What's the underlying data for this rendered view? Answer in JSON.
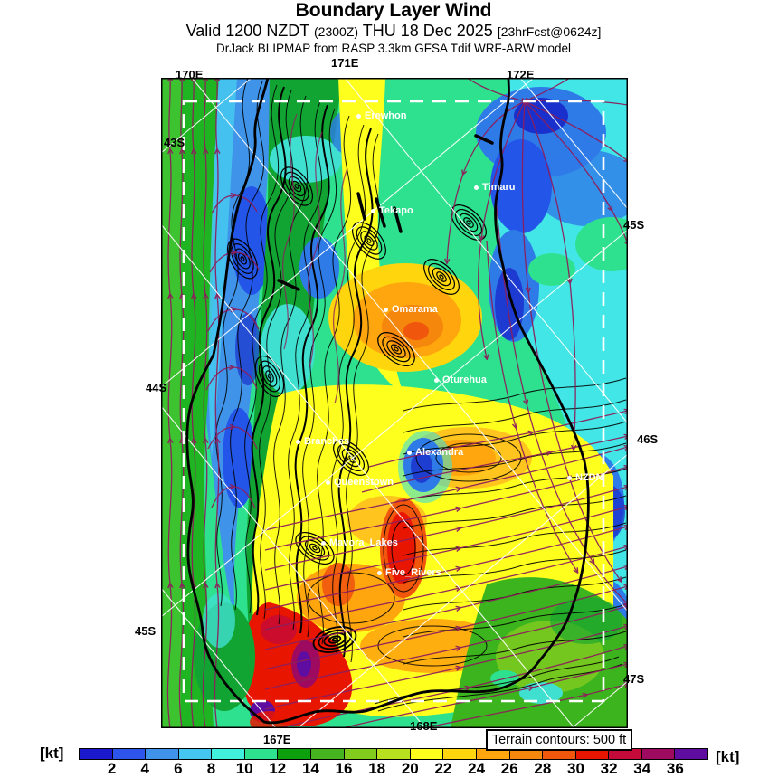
{
  "header": {
    "title": "Boundary Layer Wind",
    "valid_prefix": "Valid 1200 NZDT",
    "valid_zulu": "(2300Z)",
    "valid_date": "THU 18 Dec 2025",
    "forecast_tag": "[23hrFcst@0624z]",
    "model_line": "DrJack BLIPMAP from RASP 3.3km GFSA Tdif WRF-ARW model"
  },
  "map": {
    "geo_labels": {
      "lon_170_top": "170E",
      "lon_171_top": "171E",
      "lon_172_top": "172E",
      "lat_43_left": "43S",
      "lat_44_left": "44S",
      "lat_45_left": "45S",
      "lat_45_right": "45S",
      "lat_46_right": "46S",
      "lat_47_right": "47S",
      "lon_167_bottom": "167E",
      "lon_168_bottom": "168E"
    },
    "cities": [
      {
        "label": "Erewhon"
      },
      {
        "label": "Timaru"
      },
      {
        "label": "Tekapo"
      },
      {
        "label": "Omarama"
      },
      {
        "label": "Oturehua"
      },
      {
        "label": "Branches"
      },
      {
        "label": "Alexandra"
      },
      {
        "label": "Queenstown"
      },
      {
        "label": "NZDN"
      },
      {
        "label": "Mavora_Lakes"
      },
      {
        "label": "Five_Rivers"
      }
    ],
    "legend_note": "Terrain contours: 500 ft"
  },
  "colorbar": {
    "unit_left": "[kt]",
    "unit_right": "[kt]",
    "ticks": [
      2,
      4,
      6,
      8,
      10,
      12,
      14,
      16,
      18,
      20,
      22,
      24,
      26,
      28,
      30,
      32,
      34,
      36
    ],
    "colors": [
      "#1A1ACC",
      "#2E55EB",
      "#3F93E8",
      "#45C6F0",
      "#40F0DC",
      "#2EE18E",
      "#0CA00C",
      "#46B41E",
      "#82CC1E",
      "#B9E01E",
      "#FFFF1E",
      "#FFD60D",
      "#FFA50D",
      "#F5870D",
      "#F0570D",
      "#E81500",
      "#C40A38",
      "#9E0A5F",
      "#5E0DA0"
    ],
    "streamline_color": "#8E1F5C"
  }
}
